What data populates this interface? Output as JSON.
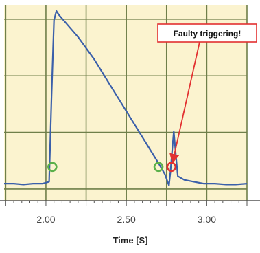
{
  "chart_data": {
    "type": "line",
    "title": "",
    "xlabel": "Time [S]",
    "ylabel": "",
    "x_ticks": [
      "2.00",
      "2.50",
      "3.00"
    ],
    "xlim": [
      1.74,
      3.25
    ],
    "ylim": [
      0,
      1
    ],
    "grid": true,
    "colors": {
      "plot_background": "#fbf3cf",
      "grid": "#6f7f4a",
      "line": "#3a5faa",
      "good_marker": "#5bb04a",
      "fault_marker": "#e23030",
      "callout_border": "#e23030"
    },
    "series": [
      {
        "values": [
          [
            1.74,
            0.07
          ],
          [
            1.8,
            0.07
          ],
          [
            1.86,
            0.065
          ],
          [
            1.92,
            0.07
          ],
          [
            1.98,
            0.07
          ],
          [
            2.02,
            0.08
          ],
          [
            2.035,
            0.55
          ],
          [
            2.05,
            0.95
          ],
          [
            2.065,
            1.0
          ],
          [
            2.08,
            0.98
          ],
          [
            2.1,
            0.96
          ],
          [
            2.15,
            0.91
          ],
          [
            2.2,
            0.86
          ],
          [
            2.25,
            0.8
          ],
          [
            2.3,
            0.74
          ],
          [
            2.35,
            0.67
          ],
          [
            2.4,
            0.6
          ],
          [
            2.45,
            0.53
          ],
          [
            2.5,
            0.46
          ],
          [
            2.55,
            0.39
          ],
          [
            2.6,
            0.32
          ],
          [
            2.65,
            0.25
          ],
          [
            2.7,
            0.18
          ],
          [
            2.74,
            0.12
          ],
          [
            2.765,
            0.06
          ],
          [
            2.775,
            0.14
          ],
          [
            2.785,
            0.25
          ],
          [
            2.795,
            0.35
          ],
          [
            2.805,
            0.25
          ],
          [
            2.82,
            0.11
          ],
          [
            2.86,
            0.09
          ],
          [
            2.92,
            0.08
          ],
          [
            2.98,
            0.07
          ],
          [
            3.05,
            0.07
          ],
          [
            3.12,
            0.065
          ],
          [
            3.18,
            0.065
          ],
          [
            3.25,
            0.07
          ]
        ]
      }
    ],
    "markers": [
      {
        "x": 2.04,
        "y": 0.16,
        "kind": "good"
      },
      {
        "x": 2.7,
        "y": 0.16,
        "kind": "good"
      },
      {
        "x": 2.78,
        "y": 0.16,
        "kind": "fault"
      }
    ],
    "annotations": [
      {
        "text": "Faulty triggering!",
        "target": {
          "x": 2.78,
          "y": 0.16
        }
      }
    ]
  }
}
